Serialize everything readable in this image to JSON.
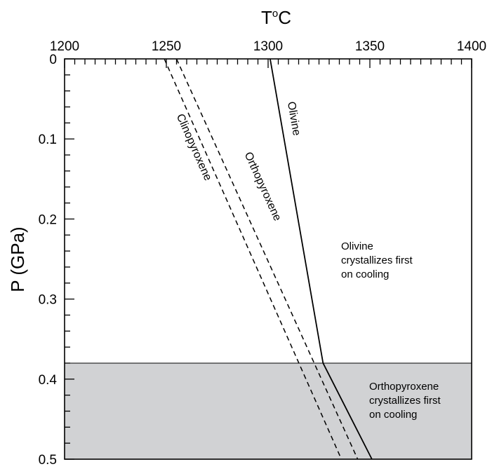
{
  "chart_data": {
    "type": "line",
    "xlabel_main": "T",
    "xlabel_sup": "o",
    "xlabel_unit": "C",
    "ylabel": "P (GPa)",
    "xlim": [
      1200,
      1400
    ],
    "ylim": [
      0,
      0.5
    ],
    "x_axis_position": "top",
    "y_inverted": true,
    "x_major_ticks": [
      1200,
      1250,
      1300,
      1350,
      1400
    ],
    "x_tick_labels": [
      "1200",
      "1250",
      "1300",
      "1350",
      "1400"
    ],
    "y_major_ticks": [
      0,
      0.1,
      0.2,
      0.3,
      0.4,
      0.5
    ],
    "y_tick_labels": [
      "0",
      "0.1",
      "0.2",
      "0.3",
      "0.4",
      "0.5"
    ],
    "series": [
      {
        "name": "Olivine",
        "style": "solid",
        "points": [
          [
            1301,
            0
          ],
          [
            1327,
            0.38
          ],
          [
            1351,
            0.5
          ]
        ]
      },
      {
        "name": "Orthopyroxene",
        "style": "dashed",
        "points": [
          [
            1255,
            0
          ],
          [
            1344,
            0.5
          ]
        ]
      },
      {
        "name": "Clinopyroxene",
        "style": "dashed",
        "points": [
          [
            1249,
            0
          ],
          [
            1336,
            0.5
          ]
        ]
      }
    ],
    "regions": [
      {
        "name": "olivine-field",
        "y_range": [
          0,
          0.38
        ],
        "fill": "#ffffff",
        "lines": [
          "Olivine",
          "crystallizes first",
          "on cooling"
        ]
      },
      {
        "name": "orthopyroxene-field",
        "y_range": [
          0.38,
          0.5
        ],
        "fill": "#d1d2d4",
        "lines": [
          "Orthopyroxene",
          "crystallizes first",
          "on cooling"
        ]
      }
    ],
    "boundary_pressure": 0.38,
    "grid": false
  }
}
